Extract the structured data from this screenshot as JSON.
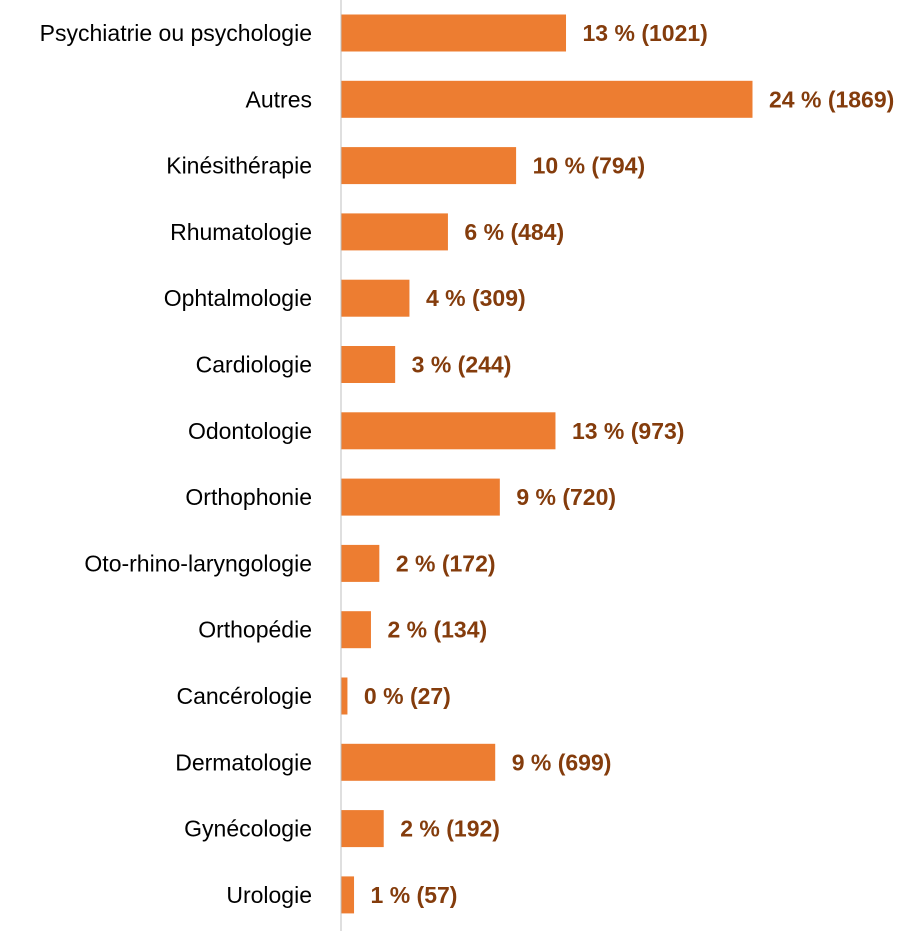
{
  "chart_data": {
    "type": "bar",
    "orientation": "horizontal",
    "categories": [
      "Psychiatrie ou psychologie",
      "Autres",
      "Kinésithérapie",
      "Rhumatologie",
      "Ophtalmologie",
      "Cardiologie",
      "Odontologie",
      "Orthophonie",
      "Oto-rhino-laryngologie",
      "Orthopédie",
      "Cancérologie",
      "Dermatologie",
      "Gynécologie",
      "Urologie"
    ],
    "values": [
      1021,
      1869,
      794,
      484,
      309,
      244,
      973,
      720,
      172,
      134,
      27,
      699,
      192,
      57
    ],
    "data_labels": [
      "13 % (1021)",
      "24 % (1869)",
      "10 % (794)",
      "6 % (484)",
      "4 % (309)",
      "3 % (244)",
      "13 % (973)",
      "9 % (720)",
      "2 % (172)",
      "2 % (134)",
      "0 % (27)",
      "9 % (699)",
      "2 % (192)",
      "1 % (57)"
    ],
    "xlim": [
      0,
      1869
    ],
    "grid": false,
    "legend": "none",
    "colors": {
      "bar": "#ED7D31",
      "label": "#843C0C",
      "axis": "#BFBFBF"
    }
  }
}
